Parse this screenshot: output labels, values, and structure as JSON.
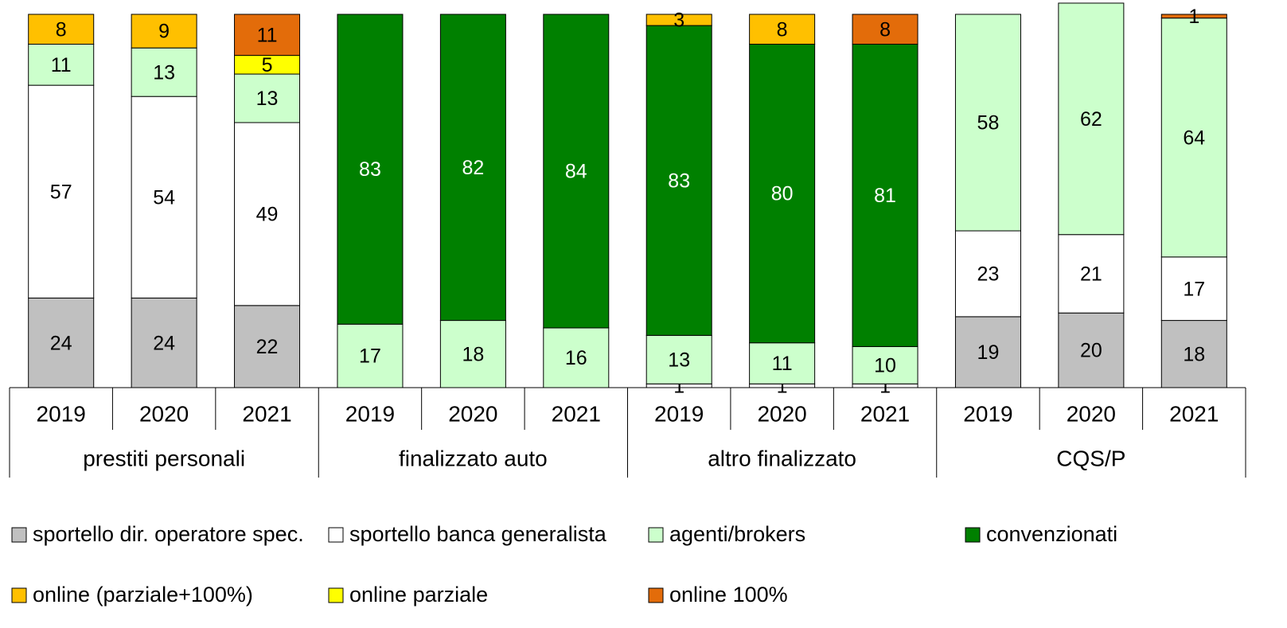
{
  "chart_data": {
    "type": "stacked_bar",
    "categories": [
      "2019",
      "2020",
      "2021",
      "2019",
      "2020",
      "2021",
      "2019",
      "2020",
      "2021",
      "2019",
      "2020",
      "2021"
    ],
    "groups": [
      "prestiti personali",
      "finalizzato auto",
      "altro finalizzato",
      "CQS/P"
    ],
    "ylim": [
      0,
      100
    ],
    "series": [
      {
        "name": "sportello dir. operatore spec.",
        "color": "#c0c0c0",
        "values": [
          24,
          24,
          22,
          null,
          null,
          null,
          null,
          null,
          null,
          19,
          20,
          18
        ]
      },
      {
        "name": "sportello banca generalista",
        "color": "#ffffff",
        "values": [
          57,
          54,
          49,
          null,
          null,
          null,
          1,
          1,
          1,
          23,
          21,
          17
        ]
      },
      {
        "name": "agenti/brokers",
        "color": "#ccffcc",
        "values": [
          11,
          13,
          13,
          17,
          18,
          16,
          13,
          11,
          10,
          58,
          62,
          64
        ]
      },
      {
        "name": "convenzionati",
        "color": "#008000",
        "values": [
          null,
          null,
          null,
          83,
          82,
          84,
          83,
          80,
          81,
          null,
          null,
          null
        ]
      },
      {
        "name": "online (parziale+100%)",
        "color": "#ffc000",
        "values": [
          8,
          9,
          null,
          null,
          null,
          null,
          3,
          8,
          null,
          null,
          null,
          null
        ]
      },
      {
        "name": "online parziale",
        "color": "#ffff00",
        "values": [
          null,
          null,
          5,
          null,
          null,
          null,
          null,
          null,
          null,
          null,
          null,
          null
        ]
      },
      {
        "name": "online 100%",
        "color": "#e36c0a",
        "values": [
          null,
          null,
          11,
          null,
          null,
          null,
          null,
          null,
          8,
          null,
          null,
          1
        ]
      }
    ]
  }
}
